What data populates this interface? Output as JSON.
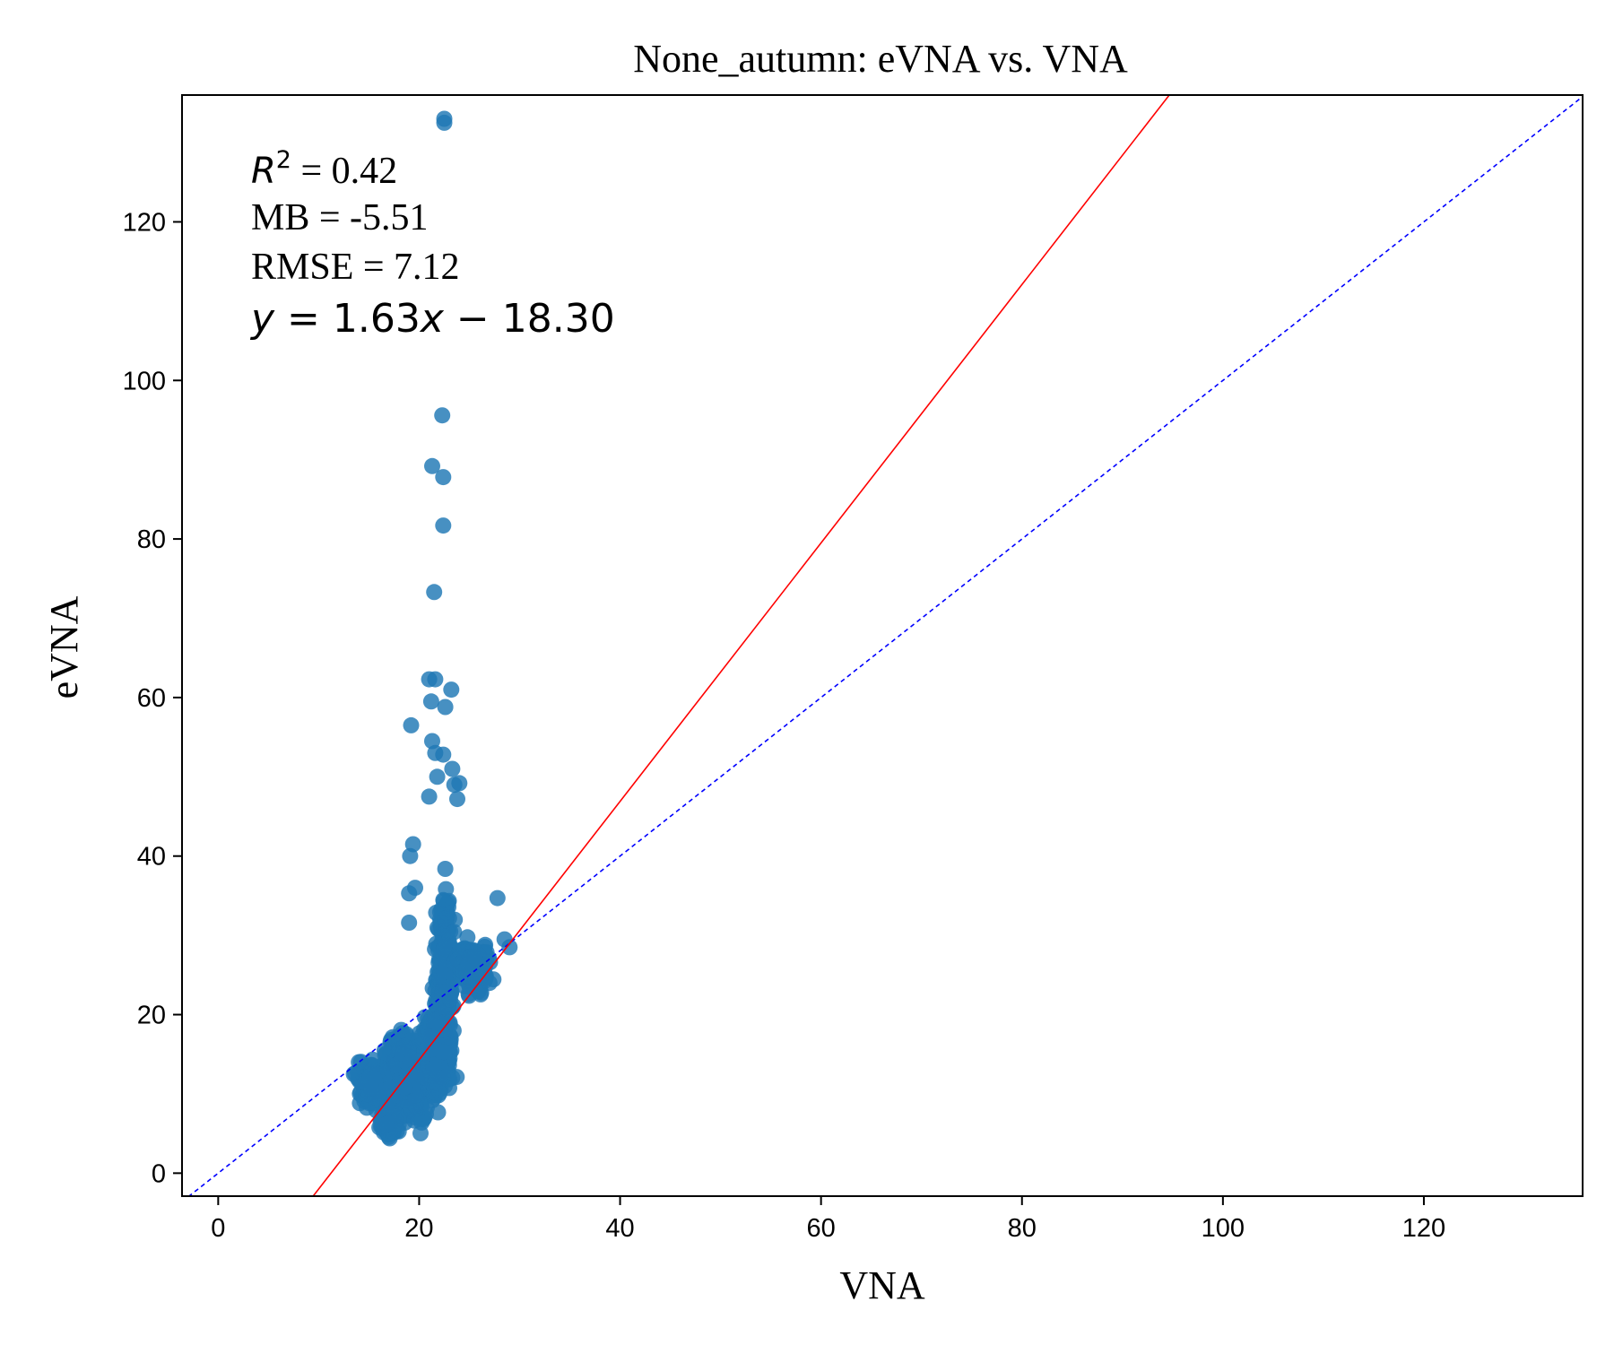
{
  "chart_data": {
    "type": "scatter",
    "title": "None_autumn: eVNA vs. VNA",
    "xlabel": "VNA",
    "ylabel": "eVNA",
    "xlim": [
      -3.6,
      135.8
    ],
    "ylim": [
      -2.9,
      136.0
    ],
    "xticks": [
      0,
      20,
      40,
      60,
      80,
      100,
      120
    ],
    "yticks": [
      0,
      20,
      40,
      60,
      80,
      100,
      120
    ],
    "grid": false,
    "point_color": "#1f77b4",
    "fit_line": {
      "slope": 1.63,
      "intercept": -18.3,
      "color": "#ff0000",
      "style": "solid"
    },
    "identity_line": {
      "slope": 1,
      "intercept": 0,
      "color": "#0000ff",
      "style": "dashed"
    },
    "stats": {
      "r2_label": "R",
      "r2_sup": "2",
      "r2_value": " = 0.42",
      "mb": "MB = -5.51",
      "rmse": "RMSE = 7.12",
      "eq_y": "y",
      "eq_mid": " = 1.63",
      "eq_x": "x",
      "eq_end": " − 18.30"
    },
    "clusters": [
      {
        "cx": 18.5,
        "cy": 12,
        "sx": 2.0,
        "sy": 4.0,
        "n": 520
      },
      {
        "cx": 22.0,
        "cy": 16,
        "sx": 1.0,
        "sy": 5.0,
        "n": 420
      },
      {
        "cx": 22.6,
        "cy": 26,
        "sx": 0.7,
        "sy": 7.0,
        "n": 260
      },
      {
        "cx": 25.5,
        "cy": 26,
        "sx": 1.5,
        "sy": 2.4,
        "n": 200
      },
      {
        "cx": 15.5,
        "cy": 11,
        "sx": 1.2,
        "sy": 2.2,
        "n": 160
      },
      {
        "cx": 17.0,
        "cy": 6.5,
        "sx": 0.8,
        "sy": 1.6,
        "n": 100
      }
    ],
    "outliers": [
      {
        "x": 22.5,
        "y": 132.5
      },
      {
        "x": 22.5,
        "y": 133.0
      },
      {
        "x": 22.3,
        "y": 95.6
      },
      {
        "x": 21.3,
        "y": 89.2
      },
      {
        "x": 22.4,
        "y": 87.8
      },
      {
        "x": 22.4,
        "y": 81.7
      },
      {
        "x": 21.5,
        "y": 73.3
      },
      {
        "x": 21.0,
        "y": 62.3
      },
      {
        "x": 21.6,
        "y": 62.3
      },
      {
        "x": 23.2,
        "y": 61.0
      },
      {
        "x": 21.2,
        "y": 59.5
      },
      {
        "x": 22.6,
        "y": 58.8
      },
      {
        "x": 19.2,
        "y": 56.5
      },
      {
        "x": 21.3,
        "y": 54.5
      },
      {
        "x": 21.6,
        "y": 53.0
      },
      {
        "x": 22.4,
        "y": 52.8
      },
      {
        "x": 23.3,
        "y": 51.0
      },
      {
        "x": 21.8,
        "y": 50.0
      },
      {
        "x": 23.5,
        "y": 49.0
      },
      {
        "x": 23.8,
        "y": 47.2
      },
      {
        "x": 21.0,
        "y": 47.5
      },
      {
        "x": 24.0,
        "y": 49.2
      },
      {
        "x": 19.4,
        "y": 41.5
      },
      {
        "x": 19.1,
        "y": 40.0
      },
      {
        "x": 19.6,
        "y": 36.0
      },
      {
        "x": 19.0,
        "y": 35.3
      },
      {
        "x": 27.8,
        "y": 34.7
      },
      {
        "x": 19.0,
        "y": 31.6
      },
      {
        "x": 28.5,
        "y": 29.5
      },
      {
        "x": 27.0,
        "y": 24.0
      },
      {
        "x": 29.0,
        "y": 28.5
      },
      {
        "x": 13.5,
        "y": 12.5
      },
      {
        "x": 14.0,
        "y": 14.0
      }
    ]
  }
}
